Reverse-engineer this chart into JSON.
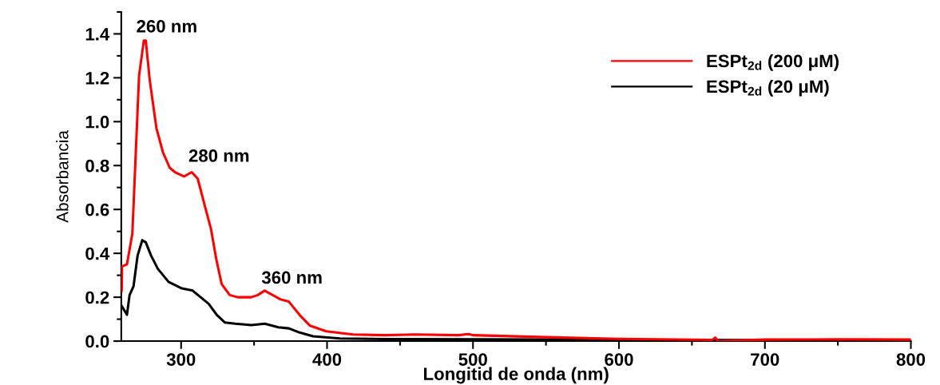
{
  "chart_data": {
    "type": "line",
    "xlabel": "Longitid de onda (nm)",
    "ylabel": "Absorbancia",
    "xlim": [
      259,
      800
    ],
    "xticks": [
      300,
      400,
      500,
      600,
      700,
      800
    ],
    "ylim": [
      0,
      1.5
    ],
    "yticks": [
      {
        "value": 0,
        "label": "0.0"
      },
      0.2,
      0.4,
      0.6,
      0.8,
      {
        "value": 1,
        "label": "1.0"
      },
      1.2,
      1.4
    ],
    "grid": false,
    "legend": "top right",
    "line_style": "solid",
    "marker": "none",
    "annotations": [
      {
        "text": "260 nm",
        "x": 275,
        "y": 1.37
      },
      {
        "text": "280 nm",
        "x": 307,
        "y": 0.77
      },
      {
        "text": "360 nm",
        "x": 357,
        "y": 0.23
      }
    ],
    "series": [
      {
        "name": "ESPt$_{2d}$ (200 μM)",
        "color": "#ff0000",
        "x": [
          259.3,
          259.5,
          262.9,
          266.6,
          271.2,
          274.5,
          275.8,
          278.5,
          283.1,
          287.6,
          292.2,
          295.8,
          302,
          307.3,
          311.4,
          316.9,
          320.5,
          324.2,
          327.8,
          333.3,
          338.8,
          348,
          352.6,
          357.2,
          362.7,
          368.2,
          373.8,
          381.1,
          388.4,
          399.4,
          417.7,
          439.8,
          460,
          490,
          497,
          500,
          550,
          600,
          664,
          666,
          668,
          700,
          750,
          800
        ],
        "values": [
          0.23,
          0.34,
          0.35,
          0.49,
          1.21,
          1.37,
          1.37,
          1.19,
          0.97,
          0.86,
          0.79,
          0.77,
          0.75,
          0.77,
          0.74,
          0.6,
          0.51,
          0.37,
          0.26,
          0.21,
          0.2,
          0.2,
          0.21,
          0.23,
          0.21,
          0.19,
          0.18,
          0.12,
          0.07,
          0.045,
          0.03,
          0.027,
          0.03,
          0.027,
          0.032,
          0.027,
          0.018,
          0.01,
          0.006,
          0.016,
          0.0,
          0.007,
          0.008,
          0.007
        ]
      },
      {
        "name": "ESPt$_{2d}$ (20 μM)",
        "color": "#000000",
        "x": [
          259.3,
          262.9,
          264.7,
          267.4,
          270.2,
          273.4,
          275.8,
          279.4,
          284,
          291.4,
          300.5,
          307.9,
          313.4,
          318.9,
          324.4,
          329.9,
          337.2,
          348.2,
          357.4,
          366.6,
          373.9,
          381.2,
          390.4,
          408.8,
          440,
          500,
          600,
          700,
          800
        ],
        "values": [
          0.16,
          0.12,
          0.21,
          0.25,
          0.39,
          0.46,
          0.45,
          0.39,
          0.33,
          0.27,
          0.24,
          0.23,
          0.2,
          0.17,
          0.12,
          0.085,
          0.079,
          0.073,
          0.079,
          0.063,
          0.058,
          0.039,
          0.022,
          0.012,
          0.009,
          0.008,
          0.006,
          0.005,
          0.004
        ]
      }
    ]
  }
}
